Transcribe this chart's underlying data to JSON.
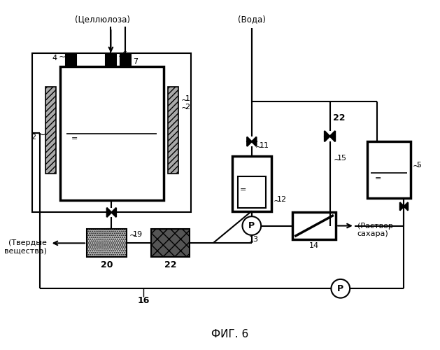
{
  "cellulose_label": "(Целлюлоза)",
  "water_label": "(Вода)",
  "solids_label": "(Твердые\nвещества)",
  "sugar_solution_label": "(Раствор\nсахара)",
  "fig_label": "ФИГ. 6",
  "bg_color": "#ffffff",
  "line_color": "#000000"
}
